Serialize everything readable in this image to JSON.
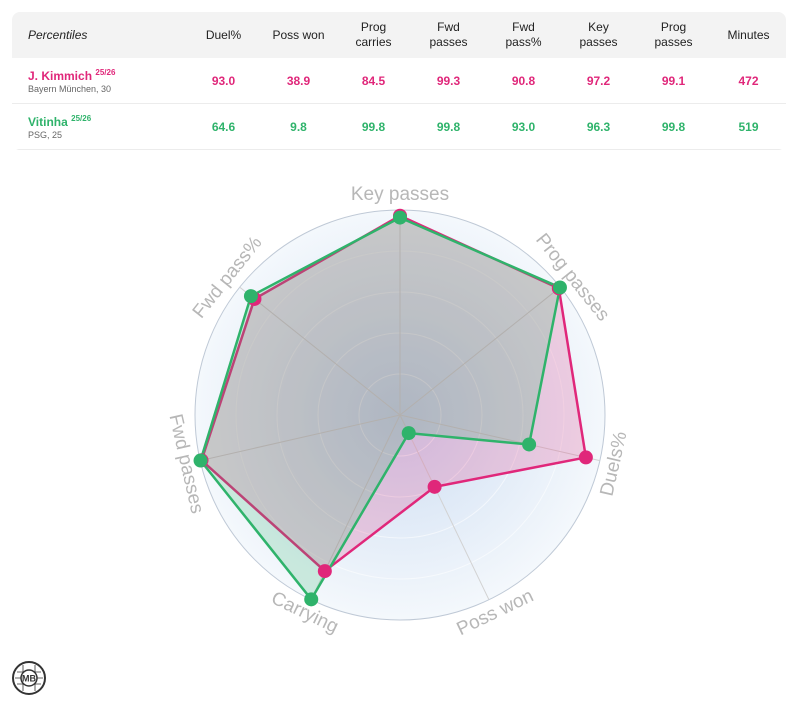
{
  "header": {
    "percentiles": "Percentiles",
    "columns": [
      {
        "key": "duel",
        "label": [
          "Duel%"
        ]
      },
      {
        "key": "poss_won",
        "label": [
          "Poss won"
        ]
      },
      {
        "key": "prog_carries",
        "label": [
          "Prog",
          "carries"
        ]
      },
      {
        "key": "fwd_passes",
        "label": [
          "Fwd",
          "passes"
        ]
      },
      {
        "key": "fwd_pass_pct",
        "label": [
          "Fwd",
          "pass%"
        ]
      },
      {
        "key": "key_passes",
        "label": [
          "Key",
          "passes"
        ]
      },
      {
        "key": "prog_passes",
        "label": [
          "Prog",
          "passes"
        ]
      },
      {
        "key": "minutes",
        "label": [
          "Minutes"
        ]
      }
    ]
  },
  "players": [
    {
      "name": "J. Kimmich",
      "season": "25/26",
      "club": "Bayern München, 30",
      "color": "#e0277a",
      "values": [
        "93.0",
        "38.9",
        "84.5",
        "99.3",
        "90.8",
        "97.2",
        "99.1",
        "472"
      ],
      "remove": "x"
    },
    {
      "name": "Vitinha",
      "season": "25/26",
      "club": "PSG, 25",
      "color": "#2fb36b",
      "values": [
        "64.6",
        "9.8",
        "99.8",
        "99.8",
        "93.0",
        "96.3",
        "99.8",
        "519"
      ],
      "remove": "x"
    }
  ],
  "chart_data": {
    "type": "radar",
    "axes": [
      "Key passes",
      "Prog passes",
      "Duels%",
      "Poss won",
      "Carrying",
      "Fwd passes",
      "Fwd pass%"
    ],
    "range": [
      0,
      100
    ],
    "series": [
      {
        "name": "J. Kimmich",
        "color": "#e0277a",
        "values": [
          97.2,
          99.1,
          93.0,
          38.9,
          84.5,
          99.3,
          90.8
        ]
      },
      {
        "name": "Vitinha",
        "color": "#2fb36b",
        "values": [
          96.3,
          99.8,
          64.6,
          9.8,
          99.8,
          99.8,
          93.0
        ]
      }
    ]
  },
  "logo": {
    "text": "MB"
  }
}
